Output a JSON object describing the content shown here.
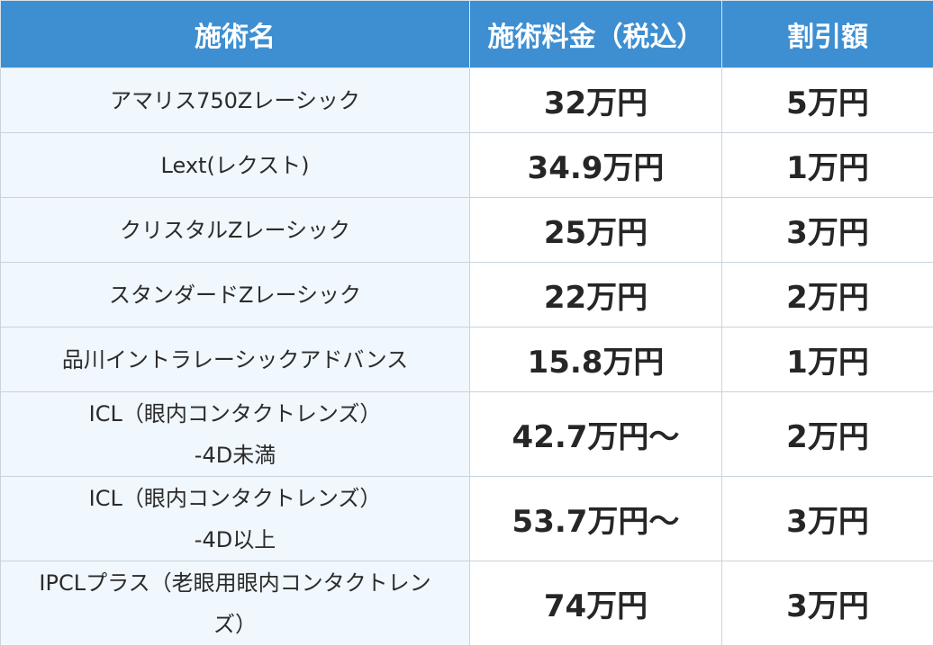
{
  "header": {
    "col_name": "施術名",
    "col_price": "施術料金（税込）",
    "col_discount": "割引額"
  },
  "rows": [
    {
      "name": [
        "アマリス750Zレーシック"
      ],
      "price": "32万円",
      "discount": "5万円"
    },
    {
      "name": [
        "Lext(レクスト)"
      ],
      "price": "34.9万円",
      "discount": "1万円"
    },
    {
      "name": [
        "クリスタルZレーシック"
      ],
      "price": "25万円",
      "discount": "3万円"
    },
    {
      "name": [
        "スタンダードZレーシック"
      ],
      "price": "22万円",
      "discount": "2万円"
    },
    {
      "name": [
        "品川イントラレーシックアドバンス"
      ],
      "price": "15.8万円",
      "discount": "1万円"
    },
    {
      "name": [
        "ICL（眼内コンタクトレンズ）",
        "-4D未満"
      ],
      "price": "42.7万円〜",
      "discount": "2万円"
    },
    {
      "name": [
        "ICL（眼内コンタクトレンズ）",
        "-4D以上"
      ],
      "price": "53.7万円〜",
      "discount": "3万円"
    },
    {
      "name": [
        "IPCLプラス（老眼用眼内コンタクトレン",
        "ズ）"
      ],
      "price": "74万円",
      "discount": "3万円"
    }
  ],
  "colors": {
    "header_bg": "#3d8fd1",
    "name_cell_bg": "#f0f7fd",
    "border": "#c9d3dc"
  }
}
